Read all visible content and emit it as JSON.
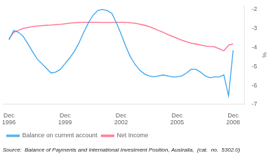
{
  "chart_data": {
    "type": "line",
    "y_label": "%",
    "annotations": [
      "Source:  Balance of Payments and International Investment Position, Australia,  (cat.  no.  5302.0)"
    ],
    "ylim": [
      -7.0,
      -1.8
    ],
    "yticks": [
      -7,
      -6,
      -5,
      -4,
      -3,
      -2
    ],
    "xlim": [
      1996.6,
      2009.5
    ],
    "xticks": [
      {
        "value": 1996.917,
        "label": "Dec\n1996"
      },
      {
        "value": 1999.917,
        "label": "Dec\n1999"
      },
      {
        "value": 2002.917,
        "label": "Dec\n2002"
      },
      {
        "value": 2005.917,
        "label": "Dec\n2005"
      },
      {
        "value": 2008.917,
        "label": "Dec\n2008"
      }
    ],
    "grid": false,
    "legend": "lower left",
    "x": [
      1996.917,
      1997.17,
      1997.42,
      1997.67,
      1997.92,
      1998.17,
      1998.42,
      1998.67,
      1998.92,
      1999.17,
      1999.42,
      1999.67,
      1999.92,
      2000.17,
      2000.42,
      2000.67,
      2000.92,
      2001.17,
      2001.42,
      2001.67,
      2001.92,
      2002.17,
      2002.42,
      2002.67,
      2002.92,
      2003.17,
      2003.42,
      2003.67,
      2003.92,
      2004.17,
      2004.42,
      2004.67,
      2004.92,
      2005.17,
      2005.42,
      2005.67,
      2005.92,
      2006.17,
      2006.42,
      2006.67,
      2006.92,
      2007.17,
      2007.42,
      2007.67,
      2007.92,
      2008.17,
      2008.42,
      2008.67,
      2008.917
    ],
    "series": [
      {
        "name": "Balance on current account",
        "values": [
          -3.6,
          -3.1,
          -3.2,
          -3.4,
          -3.8,
          -4.2,
          -4.6,
          -4.85,
          -5.1,
          -5.35,
          -5.3,
          -5.15,
          -4.85,
          -4.55,
          -4.2,
          -3.75,
          -3.2,
          -2.7,
          -2.3,
          -2.05,
          -2.0,
          -2.05,
          -2.2,
          -2.7,
          -3.3,
          -3.95,
          -4.5,
          -4.9,
          -5.2,
          -5.4,
          -5.5,
          -5.55,
          -5.5,
          -5.45,
          -5.5,
          -5.55,
          -5.55,
          -5.5,
          -5.35,
          -5.15,
          -5.15,
          -5.3,
          -5.5,
          -5.6,
          -5.55,
          -5.55,
          -5.45,
          -6.55,
          -4.15
        ]
      },
      {
        "name": "Net Income",
        "values": [
          -3.55,
          -3.2,
          -3.1,
          -3.0,
          -2.95,
          -2.9,
          -2.87,
          -2.85,
          -2.83,
          -2.82,
          -2.8,
          -2.78,
          -2.75,
          -2.72,
          -2.7,
          -2.68,
          -2.67,
          -2.67,
          -2.67,
          -2.67,
          -2.68,
          -2.68,
          -2.68,
          -2.67,
          -2.67,
          -2.68,
          -2.7,
          -2.73,
          -2.77,
          -2.83,
          -2.9,
          -3.0,
          -3.1,
          -3.2,
          -3.32,
          -3.42,
          -3.52,
          -3.62,
          -3.7,
          -3.77,
          -3.82,
          -3.87,
          -3.92,
          -3.95,
          -3.97,
          -4.07,
          -4.18,
          -3.88,
          -3.82
        ]
      }
    ]
  }
}
